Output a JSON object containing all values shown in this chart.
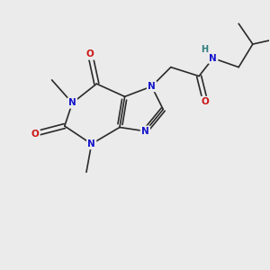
{
  "background_color": "#ebebeb",
  "bond_color": "#2a2a2a",
  "N_color": "#1414cc",
  "O_color": "#cc1414",
  "H_color": "#2e7d7d",
  "font_size": 7.5,
  "line_width": 1.2,
  "figsize": [
    3.0,
    3.0
  ],
  "dpi": 100,
  "xlim": [
    -1.0,
    9.5
  ],
  "ylim": [
    -0.5,
    9.0
  ]
}
